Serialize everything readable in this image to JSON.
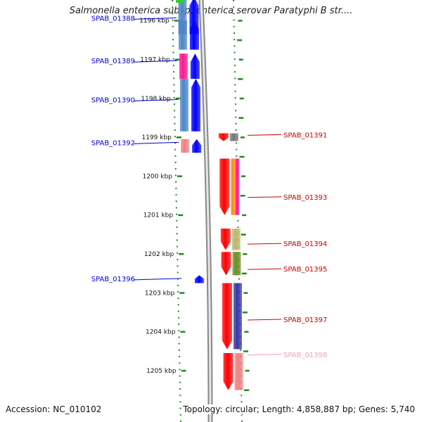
{
  "title": "Salmonella enterica subsp. enterica serovar Paratyphi B str....",
  "footer": {
    "accession": "Accession: NC_010102",
    "summary": "Topology: circular; Length: 4,858,887 bp; Genes: 5,740"
  },
  "colors": {
    "forward": "#0000ff",
    "reverse": "#ff0000",
    "forward_label": "#0000cc",
    "reverse_label": "#cc0000",
    "faded_label": "#f0a0c0",
    "ticks": "#228822",
    "backbone": "#999999"
  },
  "map": {
    "kbp_start": 1195.4,
    "kbp_end": 1205.5,
    "ticks": [
      {
        "kbp": 1196,
        "label": "1196 kbp"
      },
      {
        "kbp": 1197,
        "label": "1197 kbp"
      },
      {
        "kbp": 1198,
        "label": "1198 kbp"
      },
      {
        "kbp": 1199,
        "label": "1199 kbp"
      },
      {
        "kbp": 1200,
        "label": "1200 kbp"
      },
      {
        "kbp": 1201,
        "label": "1201 kbp"
      },
      {
        "kbp": 1202,
        "label": "1202 kbp"
      },
      {
        "kbp": 1203,
        "label": "1203 kbp"
      },
      {
        "kbp": 1204,
        "label": "1204 kbp"
      },
      {
        "kbp": 1205,
        "label": "1205 kbp"
      }
    ],
    "genes": [
      {
        "label": "",
        "strand": "+",
        "start": 1195.4,
        "end": 1196.35,
        "feat": "#4d86c6"
      },
      {
        "label": "SPAB_01388",
        "strand": "+",
        "start": 1196.0,
        "end": 1196.75,
        "feat": "#4d86c6",
        "label_kbp": 1195.95
      },
      {
        "label": "SPAB_01389",
        "strand": "+",
        "start": 1196.85,
        "end": 1197.5,
        "feat": "#ff1493",
        "label_kbp": 1197.05
      },
      {
        "label": "SPAB_01390",
        "strand": "+",
        "start": 1197.5,
        "end": 1198.85,
        "feat": "#4d86c6",
        "label_kbp": 1198.05
      },
      {
        "label": "SPAB_01391",
        "strand": "-",
        "start": 1198.9,
        "end": 1199.1,
        "feat": "#777777",
        "label_kbp": 1198.95
      },
      {
        "label": "SPAB_01392",
        "strand": "+",
        "start": 1199.05,
        "end": 1199.4,
        "feat": "#f08080",
        "label_kbp": 1199.15
      },
      {
        "label": "SPAB_01393",
        "strand": "-",
        "start": 1199.55,
        "end": 1201.0,
        "feat": "#ff8c00",
        "feat2": "#ff1493",
        "label_kbp": 1200.55
      },
      {
        "label": "SPAB_01394",
        "strand": "-",
        "start": 1201.35,
        "end": 1201.9,
        "feat": "#bdb76b",
        "label_kbp": 1201.75
      },
      {
        "label": "SPAB_01395",
        "strand": "-",
        "start": 1201.95,
        "end": 1202.55,
        "feat": "#6b8e23",
        "label_kbp": 1202.4
      },
      {
        "label": "SPAB_01396",
        "strand": "+",
        "start": 1202.55,
        "end": 1202.75,
        "feat": "",
        "label_kbp": 1202.65
      },
      {
        "label": "SPAB_01397",
        "strand": "-",
        "start": 1202.75,
        "end": 1204.45,
        "feat": "#3636a8",
        "label_kbp": 1203.7
      },
      {
        "label": "SPAB_01398",
        "strand": "-",
        "start": 1204.55,
        "end": 1205.5,
        "feat": "#f08080",
        "label_kbp": 1204.6,
        "faded": true
      }
    ]
  }
}
